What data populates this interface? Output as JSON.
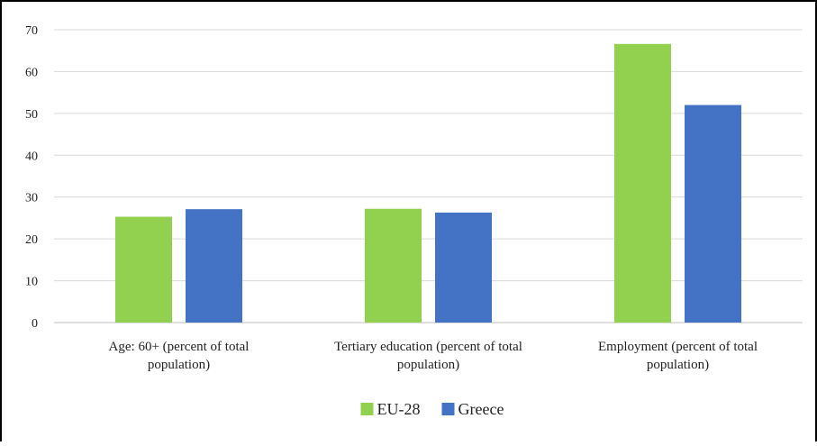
{
  "chart_data": {
    "type": "bar",
    "categories": [
      [
        "Age: 60+ (percent of total",
        "population)"
      ],
      [
        "Tertiary education (percent of total",
        "population)"
      ],
      [
        "Employment (percent of total",
        "population)"
      ]
    ],
    "series": [
      {
        "name": "EU-28",
        "color": "#92d050",
        "values": [
          25.3,
          27.2,
          66.6
        ]
      },
      {
        "name": "Greece",
        "color": "#4472c4",
        "values": [
          27.1,
          26.3,
          52.0
        ]
      }
    ],
    "ylim": [
      0,
      70
    ],
    "yticks": [
      0,
      10,
      20,
      30,
      40,
      50,
      60,
      70
    ],
    "grid": true,
    "legend_position": "bottom-center",
    "title": "",
    "xlabel": "",
    "ylabel": ""
  }
}
